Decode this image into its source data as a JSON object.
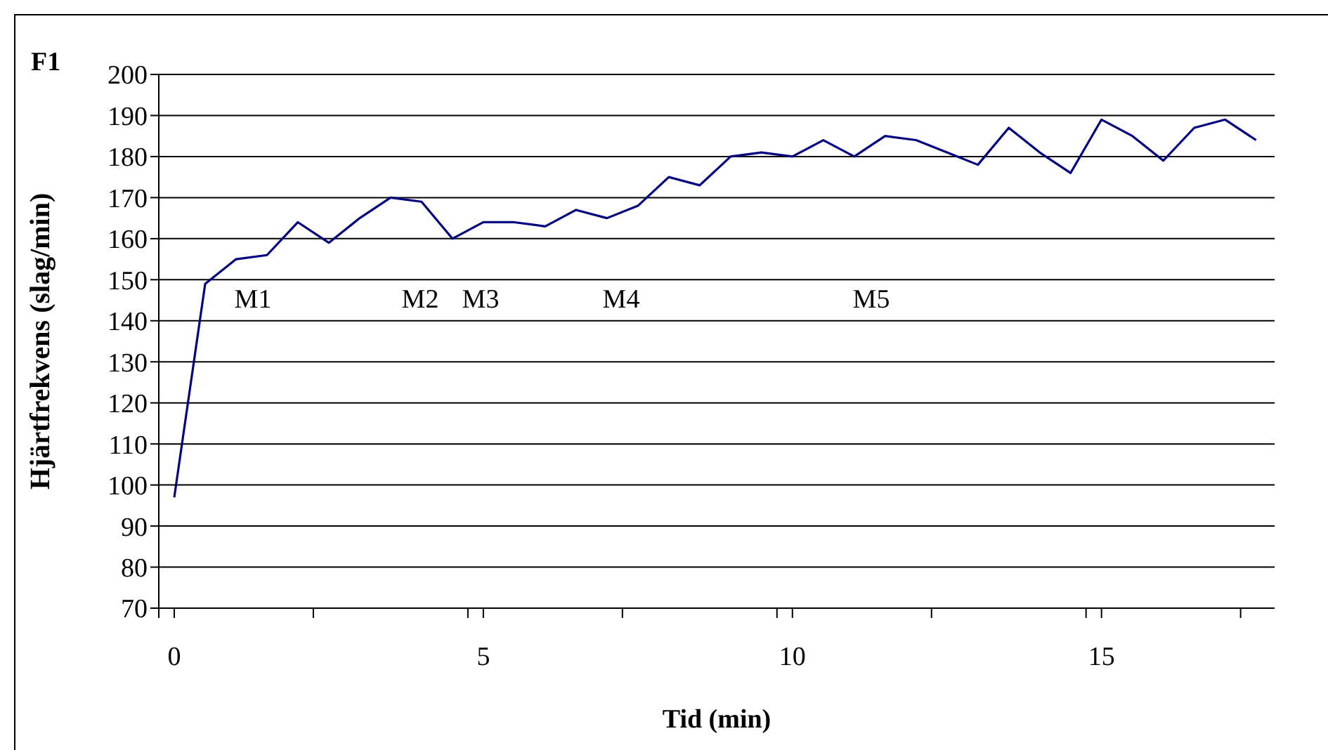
{
  "chart_data": {
    "type": "line",
    "title": "F1",
    "xlabel": "Tid (min)",
    "ylabel": "Hjärtfrekvens (slag/min)",
    "x": [
      0,
      0.5,
      1,
      1.5,
      2,
      2.5,
      3,
      3.5,
      4,
      4.5,
      5,
      5.5,
      6,
      6.5,
      7,
      7.5,
      8,
      8.5,
      9,
      9.5,
      10,
      10.5,
      11,
      11.5,
      12,
      12.5,
      13,
      13.5,
      14,
      14.5,
      15,
      15.5,
      16,
      16.5,
      17,
      17.5
    ],
    "series": [
      {
        "color": "#000080",
        "values": [
          97,
          149,
          155,
          156,
          164,
          159,
          165,
          170,
          169,
          160,
          164,
          164,
          163,
          167,
          165,
          168,
          175,
          173,
          180,
          181,
          180,
          184,
          180,
          185,
          184,
          181,
          178,
          187,
          181,
          176,
          189,
          185,
          179,
          187,
          189,
          184
        ]
      }
    ],
    "xlim": [
      -0.25,
      17.8
    ],
    "xticks": [
      {
        "value": -0.25,
        "label": null
      },
      0,
      {
        "value": 2.25,
        "label": null
      },
      {
        "value": 4.75,
        "label": null
      },
      5,
      {
        "value": 7.25,
        "label": null
      },
      {
        "value": 9.75,
        "label": null
      },
      10,
      {
        "value": 12.25,
        "label": null
      },
      {
        "value": 14.75,
        "label": null
      },
      15,
      {
        "value": 17.25,
        "label": null
      }
    ],
    "ylim": [
      70,
      200
    ],
    "yticks": [
      70,
      80,
      90,
      100,
      110,
      120,
      130,
      140,
      150,
      160,
      170,
      180,
      190,
      200
    ],
    "grid": "y",
    "legend": false,
    "marker": "none",
    "line_style": "solid",
    "annotations": [
      "M1",
      "M2",
      "M3",
      "M4",
      "M5"
    ]
  }
}
